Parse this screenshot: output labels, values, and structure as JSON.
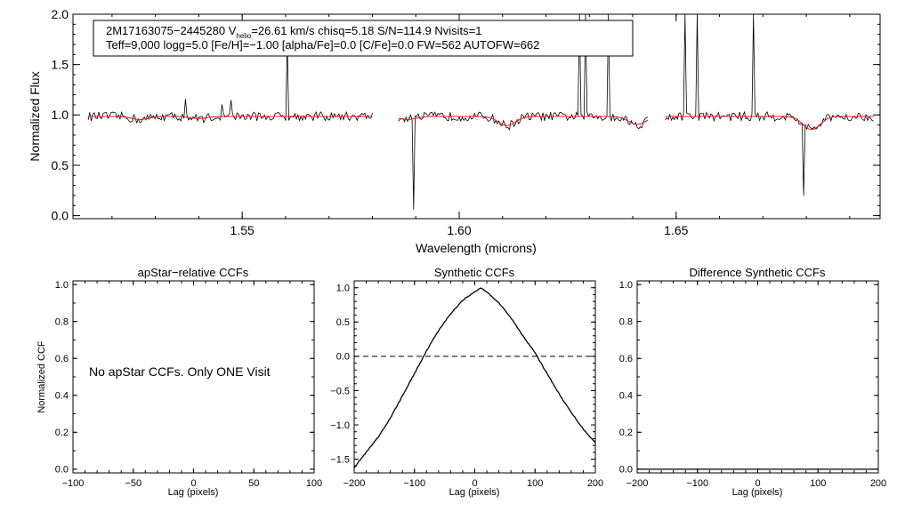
{
  "chart_data": [
    {
      "type": "line",
      "panel": "spectrum",
      "title": "",
      "xlabel": "Wavelength (microns)",
      "ylabel": "Normalized Flux",
      "xlim": [
        1.511,
        1.697
      ],
      "ylim": [
        -0.03,
        2.0
      ],
      "xticks": [
        1.55,
        1.6,
        1.65
      ],
      "xtick_labels": [
        "1.55",
        "1.60",
        "1.65"
      ],
      "yticks": [
        0.0,
        0.5,
        1.0,
        1.5,
        2.0
      ],
      "ytick_labels": [
        "0.0",
        "0.5",
        "1.0",
        "1.5",
        "2.0"
      ],
      "detector_ranges": [
        [
          1.5145,
          1.58
        ],
        [
          1.586,
          1.6435
        ],
        [
          1.6475,
          1.6955
        ]
      ],
      "series": [
        {
          "name": "observed spectrum",
          "color": "#000000"
        },
        {
          "name": "synthetic model",
          "color": "#e8202a",
          "absorption_features": [
            {
              "center": 1.5265,
              "depth": 0.03
            },
            {
              "center": 1.54,
              "depth": 0.02
            },
            {
              "center": 1.588,
              "depth": 0.03
            },
            {
              "center": 1.611,
              "depth": 0.09
            },
            {
              "center": 1.641,
              "depth": 0.08
            },
            {
              "center": 1.6812,
              "depth": 0.13
            }
          ]
        }
      ],
      "annotation": {
        "id_text": "2M17163075−2445280",
        "v_label": "V",
        "v_sub": "helio",
        "v_rest": "=26.61 km/s  chisq=5.18  S/N=114.9  Nvisits=1",
        "params_text": "Teff=9,000 logg=5.0 [Fe/H]=−1.00 [alpha/Fe]=0.0 [C/Fe]=0.0 FW=562 AUTOFW=662"
      }
    },
    {
      "type": "line",
      "panel": "apstar",
      "title": "apStar−relative CCFs",
      "xlabel": "Lag (pixels)",
      "ylabel": "Normalized CCF",
      "xlim": [
        -100,
        100
      ],
      "ylim": [
        -0.02,
        1.02
      ],
      "xticks": [
        -100,
        -50,
        0,
        50,
        100
      ],
      "xtick_labels": [
        "−100",
        "−50",
        "0",
        "50",
        "100"
      ],
      "yticks": [
        0.0,
        0.2,
        0.4,
        0.6,
        0.8,
        1.0
      ],
      "ytick_labels": [
        "0.0",
        "0.2",
        "0.4",
        "0.6",
        "0.8",
        "1.0"
      ],
      "note": "No apStar CCFs.  Only ONE Visit",
      "series": []
    },
    {
      "type": "line",
      "panel": "synthetic",
      "title": "Synthetic CCFs",
      "xlabel": "Lag (pixels)",
      "ylabel": "",
      "xlim": [
        -200,
        200
      ],
      "ylim": [
        -1.7,
        1.1
      ],
      "xticks": [
        -200,
        -100,
        0,
        100,
        200
      ],
      "xtick_labels": [
        "−200",
        "−100",
        "0",
        "100",
        "200"
      ],
      "yticks": [
        -1.5,
        -1.0,
        -0.5,
        0.0,
        0.5,
        1.0
      ],
      "ytick_labels": [
        "−1.5",
        "−1.0",
        "−0.5",
        "0.0",
        "0.5",
        "1.0"
      ],
      "zero_line": 0.0,
      "series": [
        {
          "name": "synthetic CCF",
          "x": [
            -200,
            -180,
            -160,
            -140,
            -120,
            -100,
            -80,
            -60,
            -40,
            -20,
            0,
            10,
            20,
            40,
            60,
            80,
            100,
            120,
            140,
            160,
            180,
            200
          ],
          "values": [
            -1.62,
            -1.4,
            -1.18,
            -0.9,
            -0.58,
            -0.25,
            0.08,
            0.38,
            0.62,
            0.82,
            0.94,
            1.0,
            0.94,
            0.78,
            0.56,
            0.3,
            0.05,
            -0.25,
            -0.55,
            -0.82,
            -1.06,
            -1.26
          ]
        }
      ]
    },
    {
      "type": "line",
      "panel": "difference",
      "title": "Difference Synthetic CCFs",
      "xlabel": "Lag (pixels)",
      "ylabel": "",
      "xlim": [
        -200,
        200
      ],
      "ylim": [
        -0.02,
        1.02
      ],
      "xticks": [
        -200,
        -100,
        0,
        100,
        200
      ],
      "xtick_labels": [
        "−200",
        "−100",
        "0",
        "100",
        "200"
      ],
      "yticks": [
        0.0,
        0.2,
        0.4,
        0.6,
        0.8,
        1.0
      ],
      "ytick_labels": [
        "0.0",
        "0.2",
        "0.4",
        "0.6",
        "0.8",
        "1.0"
      ],
      "series": [
        {
          "name": "difference CCF",
          "x": [
            -200,
            200
          ],
          "values": [
            0.0,
            0.0
          ]
        }
      ]
    }
  ]
}
